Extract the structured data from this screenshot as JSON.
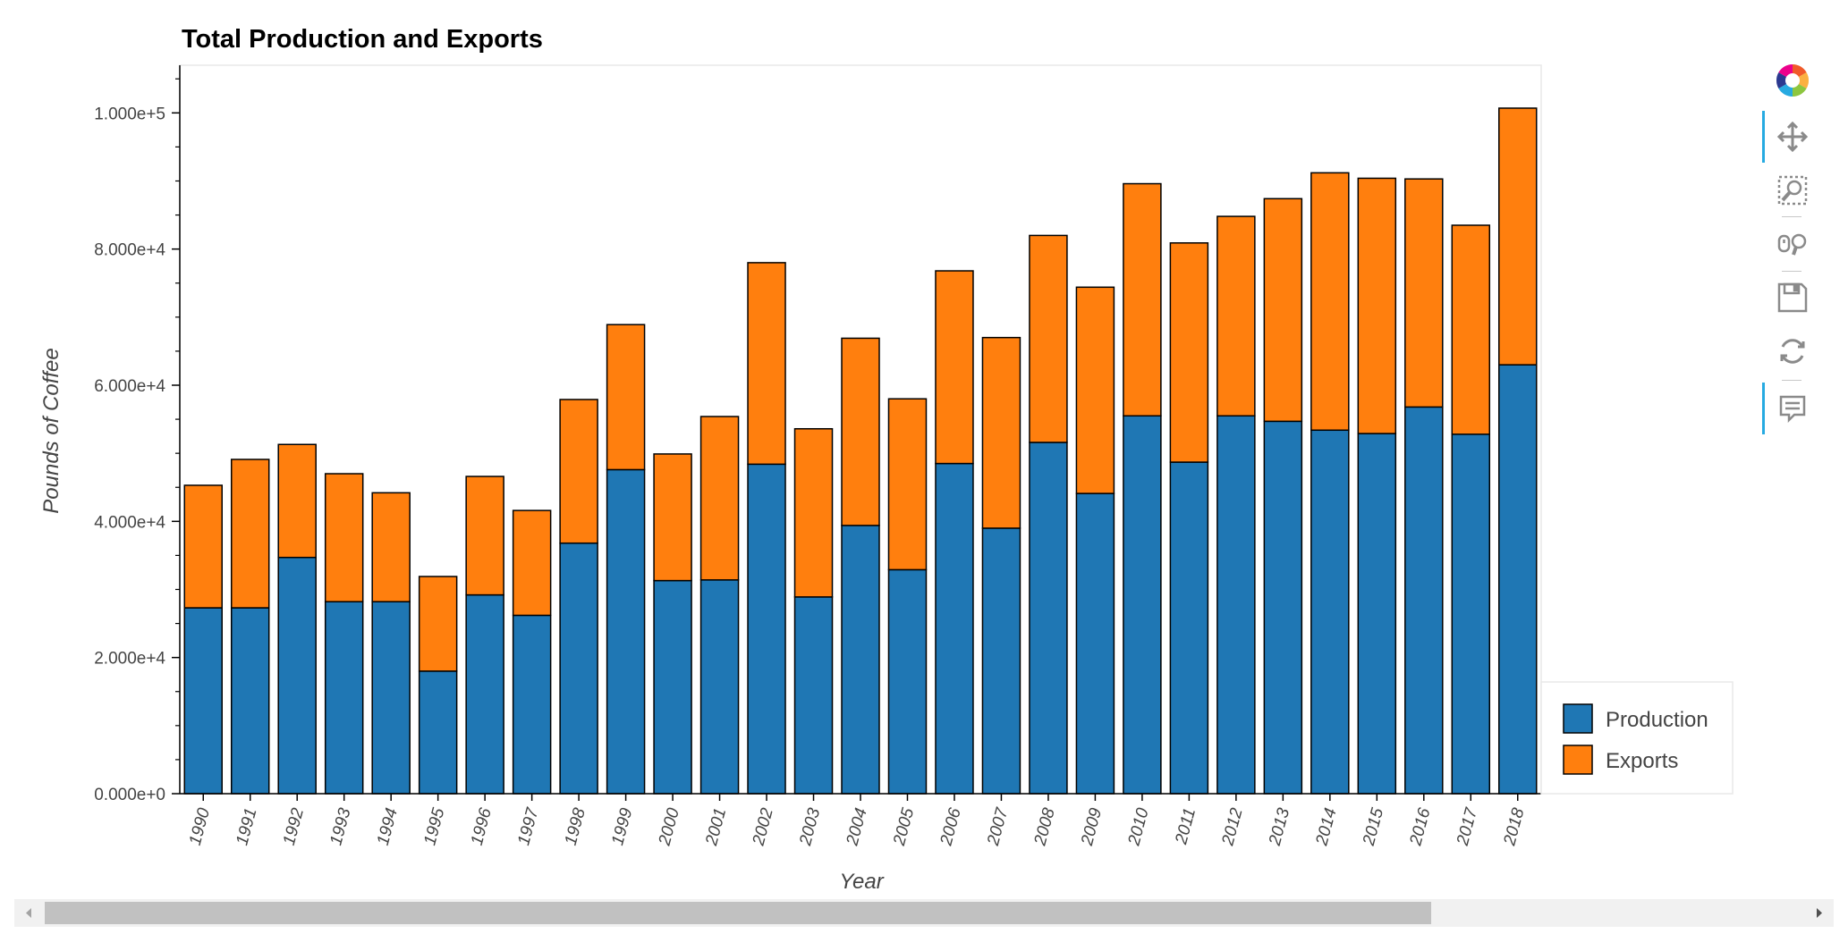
{
  "chart_data": {
    "type": "bar",
    "stacked": true,
    "title": "Total Production and Exports",
    "xlabel": "Year",
    "ylabel": "Pounds of Coffee",
    "ylim": [
      0,
      107000
    ],
    "yticks": [
      0,
      20000,
      40000,
      60000,
      80000,
      100000
    ],
    "ytick_labels": [
      "0.000e+0",
      "2.000e+4",
      "4.000e+4",
      "6.000e+4",
      "8.000e+4",
      "1.000e+5"
    ],
    "grid": false,
    "legend_position": "bottom-right",
    "categories": [
      "1990",
      "1991",
      "1992",
      "1993",
      "1994",
      "1995",
      "1996",
      "1997",
      "1998",
      "1999",
      "2000",
      "2001",
      "2002",
      "2003",
      "2004",
      "2005",
      "2006",
      "2007",
      "2008",
      "2009",
      "2010",
      "2011",
      "2012",
      "2013",
      "2014",
      "2015",
      "2016",
      "2017",
      "2018"
    ],
    "series": [
      {
        "name": "Production",
        "color": "#1f77b4",
        "values": [
          27300,
          27300,
          34700,
          28200,
          28200,
          18000,
          29200,
          26200,
          36800,
          47600,
          31300,
          31400,
          48400,
          28900,
          39400,
          32900,
          48500,
          39000,
          51600,
          44100,
          55500,
          48700,
          55500,
          54700,
          53400,
          52900,
          56800,
          52800,
          63000
        ]
      },
      {
        "name": "Exports",
        "color": "#ff7f0e",
        "values": [
          18000,
          21800,
          16600,
          18800,
          16000,
          13900,
          17400,
          15400,
          21100,
          21300,
          18600,
          24000,
          29600,
          24700,
          27500,
          25100,
          28300,
          28000,
          30400,
          30300,
          34100,
          32200,
          29300,
          32700,
          37800,
          37500,
          33500,
          30700,
          37700
        ]
      }
    ]
  },
  "toolbar": {
    "tools": [
      {
        "icon": "bokeh-logo-icon",
        "label": "Bokeh"
      },
      {
        "icon": "pan-icon",
        "label": "Pan",
        "active": true
      },
      {
        "icon": "box-zoom-icon",
        "label": "Box Zoom"
      },
      {
        "icon": "wheel-zoom-icon",
        "label": "Wheel Zoom"
      },
      {
        "icon": "save-icon",
        "label": "Save"
      },
      {
        "icon": "reset-icon",
        "label": "Reset"
      },
      {
        "icon": "hover-icon",
        "label": "Hover",
        "active": true
      }
    ],
    "accent_color": "#26aae1"
  },
  "scrollbar": {
    "left_arrow": "left-arrow-icon",
    "right_arrow": "right-arrow-icon"
  }
}
